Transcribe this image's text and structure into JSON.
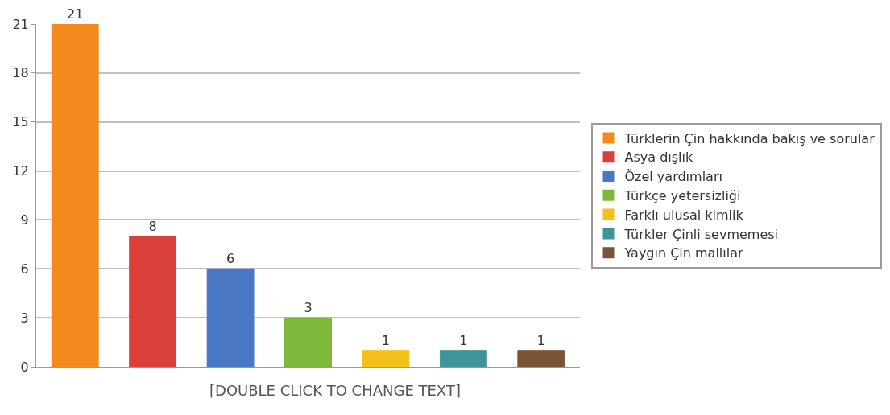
{
  "chart_data": {
    "type": "bar",
    "categories": [
      null,
      null,
      null,
      null,
      null,
      null,
      null
    ],
    "series": [
      {
        "name": "Türklerin Çin hakkında bakış ve sorular",
        "color": "#f28a1e",
        "values": [
          21,
          null,
          null,
          null,
          null,
          null,
          null
        ]
      },
      {
        "name": "Asya dışlık",
        "color": "#d9403c",
        "values": [
          null,
          8,
          null,
          null,
          null,
          null,
          null
        ]
      },
      {
        "name": "Özel yardımları",
        "color": "#4a78c4",
        "values": [
          null,
          null,
          6,
          null,
          null,
          null,
          null
        ]
      },
      {
        "name": "Türkçe yetersizliği",
        "color": "#7cb83a",
        "values": [
          null,
          null,
          null,
          3,
          null,
          null,
          null
        ]
      },
      {
        "name": "Farklı ulusal kimlik",
        "color": "#f5bf1a",
        "values": [
          null,
          null,
          null,
          null,
          1,
          null,
          null
        ]
      },
      {
        "name": "Türkler Çinli sevmemesi",
        "color": "#3f939b",
        "values": [
          null,
          null,
          null,
          null,
          null,
          1,
          null
        ]
      },
      {
        "name": "Yaygın Çin mallılar",
        "color": "#7a5436",
        "values": [
          null,
          null,
          null,
          null,
          null,
          null,
          1
        ]
      }
    ],
    "ylim": [
      0,
      21
    ],
    "yticks": [
      0,
      3,
      6,
      9,
      12,
      15,
      18,
      21
    ],
    "grid": "y",
    "legend": "right",
    "tick_labels": "y",
    "data_labels": true,
    "annotations": [
      "[DOUBLE CLICK TO CHANGE TEXT]"
    ]
  }
}
